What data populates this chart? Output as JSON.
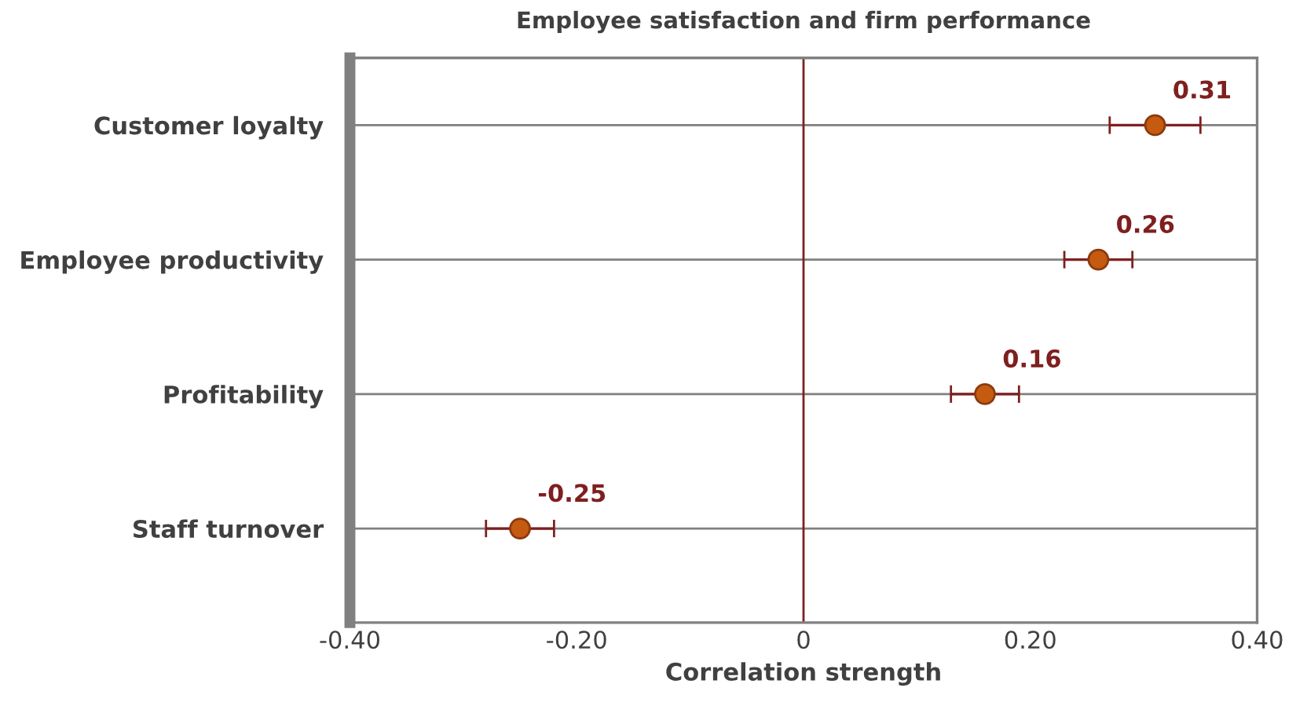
{
  "chart_data": {
    "type": "scatter",
    "orientation": "horizontal",
    "title": "Employee satisfaction and firm performance",
    "xlabel": "Correlation strength",
    "categories": [
      "Customer loyalty",
      "Employee productivity",
      "Profitability",
      "Staff turnover"
    ],
    "values": [
      0.31,
      0.26,
      0.16,
      -0.25
    ],
    "errors": [
      0.04,
      0.03,
      0.03,
      0.03
    ],
    "color": "#c55a11",
    "data_labels": true,
    "marker": "circle",
    "xlim": [
      -0.4,
      0.4
    ],
    "xticks": [
      {
        "value": -0.4,
        "label": "-0.40"
      },
      {
        "value": -0.2,
        "label": "-0.20"
      },
      {
        "value": 0,
        "label": "0"
      },
      {
        "value": 0.2,
        "label": "0.20"
      },
      {
        "value": 0.4,
        "label": "0.40"
      }
    ],
    "ref_lines": [
      {
        "axis": "x",
        "value": 0,
        "color": "#7f1f1f"
      }
    ],
    "grid": "y"
  }
}
